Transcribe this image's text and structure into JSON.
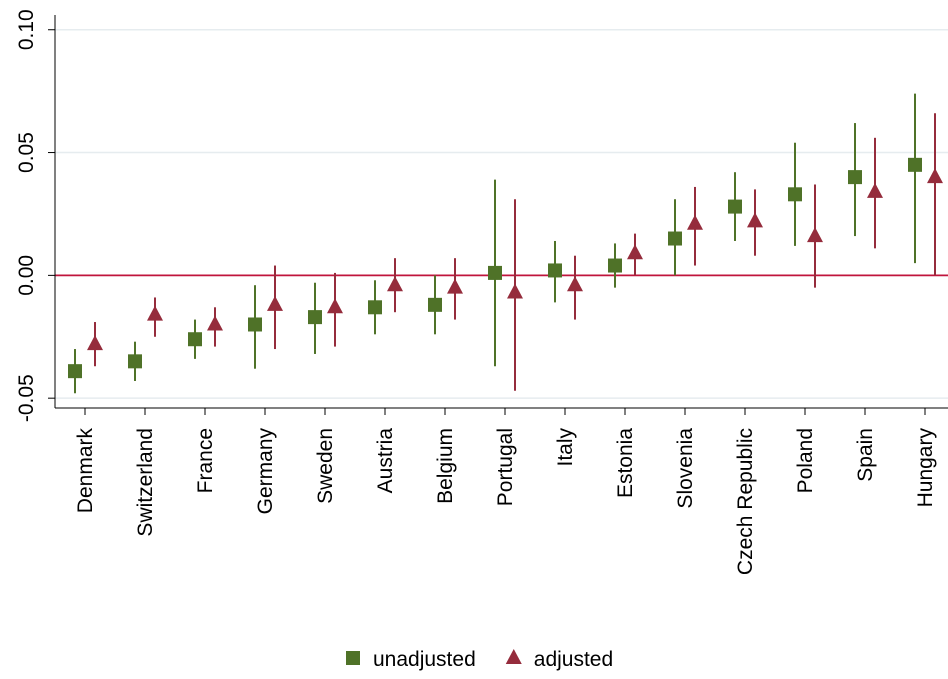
{
  "chart_data": {
    "type": "errorbar",
    "categories": [
      "Denmark",
      "Switzerland",
      "France",
      "Germany",
      "Sweden",
      "Austria",
      "Belgium",
      "Portugal",
      "Italy",
      "Estonia",
      "Slovenia",
      "Czech Republic",
      "Poland",
      "Spain",
      "Hungary"
    ],
    "series": [
      {
        "name": "unadjusted",
        "color": "#4f7228",
        "marker": "square",
        "values": [
          -0.039,
          -0.035,
          -0.026,
          -0.02,
          -0.017,
          -0.013,
          -0.012,
          0.001,
          0.002,
          0.004,
          0.015,
          0.028,
          0.033,
          0.04,
          0.045
        ],
        "lower": [
          -0.048,
          -0.043,
          -0.034,
          -0.038,
          -0.032,
          -0.024,
          -0.024,
          -0.037,
          -0.011,
          -0.005,
          0.0,
          0.014,
          0.012,
          0.016,
          0.005
        ],
        "upper": [
          -0.03,
          -0.027,
          -0.018,
          -0.004,
          -0.003,
          -0.002,
          0.0,
          0.039,
          0.014,
          0.013,
          0.031,
          0.042,
          0.054,
          0.062,
          0.074
        ]
      },
      {
        "name": "adjusted",
        "color": "#952c3c",
        "marker": "triangle",
        "values": [
          -0.028,
          -0.016,
          -0.02,
          -0.012,
          -0.013,
          -0.004,
          -0.005,
          -0.007,
          -0.004,
          0.009,
          0.021,
          0.022,
          0.016,
          0.034,
          0.04
        ],
        "lower": [
          -0.037,
          -0.025,
          -0.029,
          -0.03,
          -0.029,
          -0.015,
          -0.018,
          -0.047,
          -0.018,
          0.0,
          0.004,
          0.008,
          -0.005,
          0.011,
          0.0
        ],
        "upper": [
          -0.019,
          -0.009,
          -0.013,
          0.004,
          0.001,
          0.007,
          0.007,
          0.031,
          0.008,
          0.017,
          0.036,
          0.035,
          0.037,
          0.056,
          0.066
        ]
      }
    ],
    "ylim": [
      -0.054,
      0.106
    ],
    "yticks": [
      {
        "value": -0.05,
        "label": "-0.05"
      },
      {
        "value": 0,
        "label": "0.00"
      },
      {
        "value": 0.05,
        "label": "0.05"
      },
      {
        "value": 0.1,
        "label": "0.10"
      }
    ],
    "grid": true,
    "reference_line": {
      "value": 0,
      "color": "#c0143c"
    },
    "legend": "bottom"
  }
}
